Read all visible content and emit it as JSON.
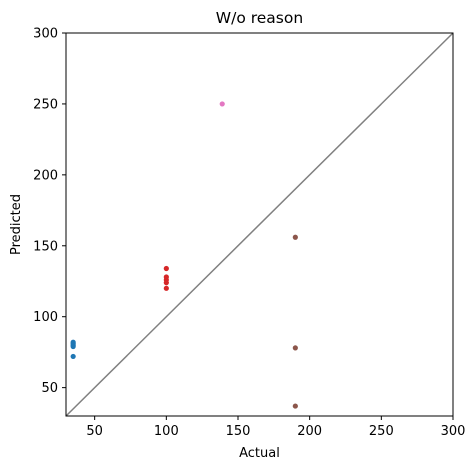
{
  "chart_data": {
    "type": "scatter",
    "title": "W/o reason",
    "xlabel": "Actual",
    "ylabel": "Predicted",
    "xlim": [
      30,
      300
    ],
    "ylim": [
      30,
      300
    ],
    "xticks": [
      50,
      100,
      150,
      200,
      250,
      300
    ],
    "yticks": [
      50,
      100,
      150,
      200,
      250,
      300
    ],
    "grid": false,
    "reference_line": {
      "x": [
        30,
        300
      ],
      "y": [
        30,
        300
      ],
      "color": "#808080"
    },
    "series": [
      {
        "color": "#1f77b4",
        "points": [
          [
            35,
            72
          ],
          [
            35,
            79
          ],
          [
            35,
            80
          ],
          [
            35,
            81
          ],
          [
            35,
            82
          ]
        ]
      },
      {
        "color": "#d62728",
        "points": [
          [
            100,
            120
          ],
          [
            100,
            124
          ],
          [
            100,
            126
          ],
          [
            100,
            128
          ],
          [
            100,
            134
          ]
        ]
      },
      {
        "color": "#e377c2",
        "points": [
          [
            139,
            250
          ]
        ]
      },
      {
        "color": "#8c564b",
        "points": [
          [
            190,
            37
          ],
          [
            190,
            78
          ],
          [
            190,
            156
          ]
        ]
      }
    ]
  }
}
